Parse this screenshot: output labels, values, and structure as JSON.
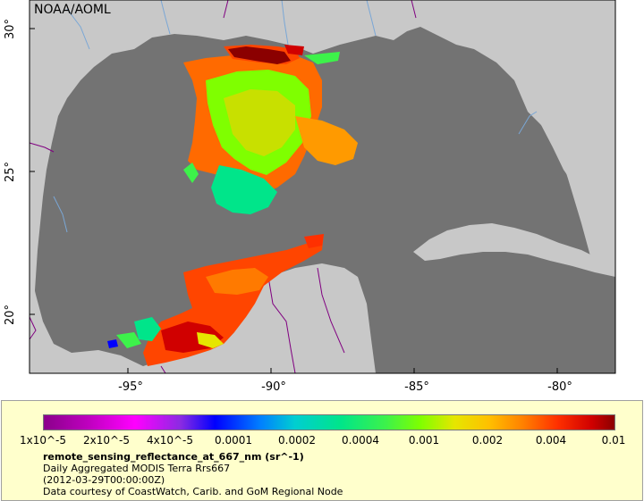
{
  "map": {
    "credit": "NOAA/AOML",
    "lat_ticks": [
      "30°",
      "25°",
      "20°"
    ],
    "lon_ticks": [
      "-95°",
      "-90°",
      "-85°",
      "-80°"
    ],
    "colors": {
      "ocean": "#737373",
      "land": "#c8c8c8",
      "rivers": "#7aa7d6",
      "borders": "#800080"
    }
  },
  "legend": {
    "colorbar_labels": [
      "1x10^-5",
      "2x10^-5",
      "4x10^-5",
      "0.0001",
      "0.0002",
      "0.0004",
      "0.001",
      "0.002",
      "0.004",
      "0.01"
    ],
    "variable": "remote_sensing_reflectance_at_667_nm (sr^-1)",
    "dataset": "Daily Aggregated MODIS Terra Rrs667",
    "time": "(2012-03-29T00:00:00Z)",
    "courtesy": "Data courtesy of CoastWatch, Carib. and GoM Regional Node",
    "background": "#ffffcc"
  }
}
